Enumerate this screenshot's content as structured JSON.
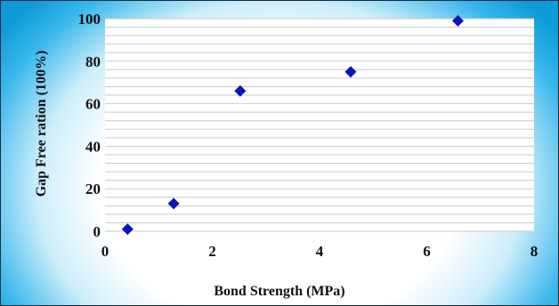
{
  "chart_data": {
    "type": "scatter",
    "title": "",
    "xlabel": "Bond Strength (MPa)",
    "ylabel": "Gap Free ration (100%)",
    "xlim": [
      0,
      8
    ],
    "ylim": [
      0,
      100
    ],
    "xticks": [
      "0",
      "2",
      "4",
      "6",
      "8"
    ],
    "yticks": [
      "0",
      "20",
      "40",
      "60",
      "80",
      "100"
    ],
    "grid": true,
    "legend": "none",
    "series": [
      {
        "x": [
          0.42,
          1.28,
          2.52,
          4.58,
          6.58
        ],
        "y": [
          1,
          13,
          66,
          75,
          99
        ],
        "color": "#0a14b8",
        "marker": "diamond"
      }
    ]
  }
}
